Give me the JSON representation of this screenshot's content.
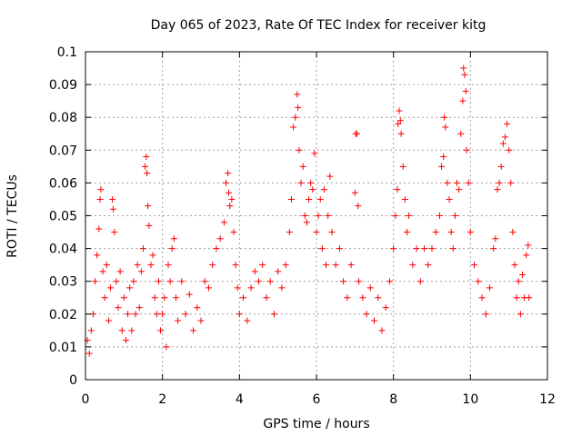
{
  "chart_data": {
    "type": "scatter",
    "title": "Day 065 of 2023, Rate Of TEC Index for receiver kitg",
    "xlabel": "GPS time / hours",
    "ylabel": "ROTI / TECUs",
    "xlim": [
      0,
      12
    ],
    "ylim": [
      0,
      0.1
    ],
    "grid": true,
    "marker": "+",
    "color": "#ff0000",
    "x_ticks": [
      "0",
      "2",
      "4",
      "6",
      "8",
      "10",
      "12"
    ],
    "y_ticks": [
      "0",
      "0.01",
      "0.02",
      "0.03",
      "0.04",
      "0.05",
      "0.06",
      "0.07",
      "0.08",
      "0.09",
      "0.1"
    ],
    "series": [
      {
        "name": "ROTI",
        "points": [
          [
            0.05,
            0.012
          ],
          [
            0.1,
            0.008
          ],
          [
            0.15,
            0.015
          ],
          [
            0.2,
            0.02
          ],
          [
            0.25,
            0.03
          ],
          [
            0.3,
            0.038
          ],
          [
            0.35,
            0.046
          ],
          [
            0.38,
            0.055
          ],
          [
            0.4,
            0.058
          ],
          [
            0.45,
            0.033
          ],
          [
            0.5,
            0.025
          ],
          [
            0.55,
            0.035
          ],
          [
            0.6,
            0.018
          ],
          [
            0.65,
            0.028
          ],
          [
            0.7,
            0.055
          ],
          [
            0.72,
            0.052
          ],
          [
            0.75,
            0.045
          ],
          [
            0.8,
            0.03
          ],
          [
            0.85,
            0.022
          ],
          [
            0.9,
            0.033
          ],
          [
            0.95,
            0.015
          ],
          [
            1.0,
            0.025
          ],
          [
            1.05,
            0.012
          ],
          [
            1.1,
            0.02
          ],
          [
            1.15,
            0.028
          ],
          [
            1.2,
            0.015
          ],
          [
            1.25,
            0.03
          ],
          [
            1.3,
            0.02
          ],
          [
            1.35,
            0.035
          ],
          [
            1.4,
            0.022
          ],
          [
            1.45,
            0.033
          ],
          [
            1.5,
            0.04
          ],
          [
            1.55,
            0.065
          ],
          [
            1.58,
            0.068
          ],
          [
            1.6,
            0.063
          ],
          [
            1.62,
            0.053
          ],
          [
            1.65,
            0.047
          ],
          [
            1.7,
            0.035
          ],
          [
            1.75,
            0.038
          ],
          [
            1.8,
            0.025
          ],
          [
            1.85,
            0.02
          ],
          [
            1.9,
            0.03
          ],
          [
            1.95,
            0.015
          ],
          [
            2.0,
            0.02
          ],
          [
            2.05,
            0.025
          ],
          [
            2.1,
            0.01
          ],
          [
            2.15,
            0.035
          ],
          [
            2.2,
            0.03
          ],
          [
            2.25,
            0.04
          ],
          [
            2.3,
            0.043
          ],
          [
            2.35,
            0.025
          ],
          [
            2.4,
            0.018
          ],
          [
            2.5,
            0.03
          ],
          [
            2.6,
            0.02
          ],
          [
            2.7,
            0.026
          ],
          [
            2.8,
            0.015
          ],
          [
            2.9,
            0.022
          ],
          [
            3.0,
            0.018
          ],
          [
            3.1,
            0.03
          ],
          [
            3.2,
            0.028
          ],
          [
            3.3,
            0.035
          ],
          [
            3.4,
            0.04
          ],
          [
            3.5,
            0.043
          ],
          [
            3.6,
            0.048
          ],
          [
            3.65,
            0.06
          ],
          [
            3.7,
            0.063
          ],
          [
            3.72,
            0.057
          ],
          [
            3.75,
            0.053
          ],
          [
            3.8,
            0.055
          ],
          [
            3.85,
            0.045
          ],
          [
            3.9,
            0.035
          ],
          [
            3.95,
            0.028
          ],
          [
            4.0,
            0.02
          ],
          [
            4.1,
            0.025
          ],
          [
            4.2,
            0.018
          ],
          [
            4.3,
            0.028
          ],
          [
            4.4,
            0.033
          ],
          [
            4.5,
            0.03
          ],
          [
            4.6,
            0.035
          ],
          [
            4.7,
            0.025
          ],
          [
            4.8,
            0.03
          ],
          [
            4.9,
            0.02
          ],
          [
            5.0,
            0.033
          ],
          [
            5.1,
            0.028
          ],
          [
            5.2,
            0.035
          ],
          [
            5.3,
            0.045
          ],
          [
            5.35,
            0.055
          ],
          [
            5.4,
            0.077
          ],
          [
            5.45,
            0.08
          ],
          [
            5.5,
            0.087
          ],
          [
            5.52,
            0.083
          ],
          [
            5.55,
            0.07
          ],
          [
            5.6,
            0.06
          ],
          [
            5.65,
            0.065
          ],
          [
            5.7,
            0.05
          ],
          [
            5.75,
            0.048
          ],
          [
            5.8,
            0.055
          ],
          [
            5.85,
            0.06
          ],
          [
            5.9,
            0.058
          ],
          [
            5.95,
            0.069
          ],
          [
            6.0,
            0.045
          ],
          [
            6.05,
            0.05
          ],
          [
            6.1,
            0.055
          ],
          [
            6.15,
            0.04
          ],
          [
            6.2,
            0.058
          ],
          [
            6.25,
            0.035
          ],
          [
            6.3,
            0.05
          ],
          [
            6.35,
            0.062
          ],
          [
            6.4,
            0.045
          ],
          [
            6.5,
            0.035
          ],
          [
            6.6,
            0.04
          ],
          [
            6.7,
            0.03
          ],
          [
            6.8,
            0.025
          ],
          [
            6.9,
            0.035
          ],
          [
            7.0,
            0.057
          ],
          [
            7.02,
            0.075
          ],
          [
            7.05,
            0.075
          ],
          [
            7.08,
            0.053
          ],
          [
            7.1,
            0.03
          ],
          [
            7.2,
            0.025
          ],
          [
            7.3,
            0.02
          ],
          [
            7.4,
            0.028
          ],
          [
            7.5,
            0.018
          ],
          [
            7.6,
            0.025
          ],
          [
            7.7,
            0.015
          ],
          [
            7.8,
            0.022
          ],
          [
            7.9,
            0.03
          ],
          [
            8.0,
            0.04
          ],
          [
            8.05,
            0.05
          ],
          [
            8.1,
            0.058
          ],
          [
            8.12,
            0.078
          ],
          [
            8.15,
            0.082
          ],
          [
            8.18,
            0.079
          ],
          [
            8.2,
            0.075
          ],
          [
            8.25,
            0.065
          ],
          [
            8.3,
            0.055
          ],
          [
            8.35,
            0.045
          ],
          [
            8.4,
            0.05
          ],
          [
            8.5,
            0.035
          ],
          [
            8.6,
            0.04
          ],
          [
            8.7,
            0.03
          ],
          [
            8.8,
            0.04
          ],
          [
            8.9,
            0.035
          ],
          [
            9.0,
            0.04
          ],
          [
            9.1,
            0.045
          ],
          [
            9.2,
            0.05
          ],
          [
            9.25,
            0.065
          ],
          [
            9.3,
            0.068
          ],
          [
            9.32,
            0.08
          ],
          [
            9.35,
            0.077
          ],
          [
            9.4,
            0.06
          ],
          [
            9.45,
            0.055
          ],
          [
            9.5,
            0.045
          ],
          [
            9.55,
            0.04
          ],
          [
            9.6,
            0.05
          ],
          [
            9.65,
            0.06
          ],
          [
            9.7,
            0.058
          ],
          [
            9.75,
            0.075
          ],
          [
            9.8,
            0.085
          ],
          [
            9.82,
            0.095
          ],
          [
            9.85,
            0.093
          ],
          [
            9.88,
            0.088
          ],
          [
            9.9,
            0.07
          ],
          [
            9.95,
            0.06
          ],
          [
            10.0,
            0.045
          ],
          [
            10.1,
            0.035
          ],
          [
            10.2,
            0.03
          ],
          [
            10.3,
            0.025
          ],
          [
            10.4,
            0.02
          ],
          [
            10.5,
            0.028
          ],
          [
            10.6,
            0.04
          ],
          [
            10.65,
            0.043
          ],
          [
            10.7,
            0.058
          ],
          [
            10.75,
            0.06
          ],
          [
            10.8,
            0.065
          ],
          [
            10.85,
            0.072
          ],
          [
            10.9,
            0.074
          ],
          [
            10.95,
            0.078
          ],
          [
            11.0,
            0.07
          ],
          [
            11.05,
            0.06
          ],
          [
            11.1,
            0.045
          ],
          [
            11.15,
            0.035
          ],
          [
            11.2,
            0.025
          ],
          [
            11.25,
            0.03
          ],
          [
            11.3,
            0.02
          ],
          [
            11.35,
            0.032
          ],
          [
            11.4,
            0.025
          ],
          [
            11.45,
            0.038
          ],
          [
            11.5,
            0.041
          ],
          [
            11.52,
            0.025
          ]
        ]
      }
    ]
  }
}
